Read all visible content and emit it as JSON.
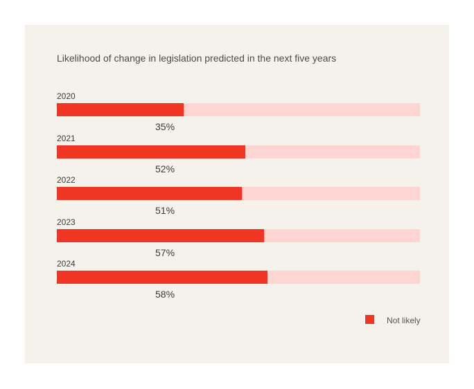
{
  "chart_data": {
    "type": "bar",
    "orientation": "horizontal",
    "title": "Likelihood of change in legislation predicted in the next five years",
    "categories": [
      "2020",
      "2021",
      "2022",
      "2023",
      "2024"
    ],
    "series": [
      {
        "name": "Not likely",
        "values": [
          35,
          52,
          51,
          57,
          58
        ]
      }
    ],
    "data_labels": [
      "35%",
      "52%",
      "51%",
      "57%",
      "58%"
    ],
    "xlim": [
      0,
      100
    ],
    "grid": false,
    "legend": "bottom-right",
    "colors": {
      "fill": "#f03525",
      "track": "#fdd5d3",
      "background": "#f5f2eb"
    }
  }
}
